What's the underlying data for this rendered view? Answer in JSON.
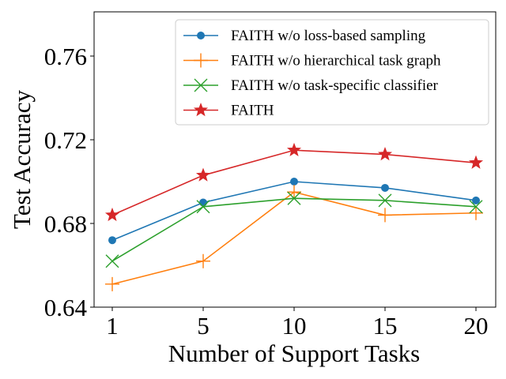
{
  "chart_data": {
    "type": "line",
    "title": "",
    "xlabel": "Number of Support Tasks",
    "ylabel": "Test Accuracy",
    "categories": [
      "1",
      "5",
      "10",
      "15",
      "20"
    ],
    "yticks": [
      "0.64",
      "0.68",
      "0.72",
      "0.76"
    ],
    "ylim": [
      0.64,
      0.78
    ],
    "grid": false,
    "legend_position": "top-right",
    "series": [
      {
        "name": "FAITH w/o loss-based sampling",
        "color": "#1f77b4",
        "marker": "circle",
        "values": [
          0.672,
          0.69,
          0.7,
          0.697,
          0.691
        ]
      },
      {
        "name": "FAITH w/o hierarchical task graph",
        "color": "#ff7f0e",
        "marker": "plus",
        "values": [
          0.651,
          0.662,
          0.695,
          0.684,
          0.685
        ]
      },
      {
        "name": "FAITH w/o task-specific classifier",
        "color": "#2ca02c",
        "marker": "x",
        "values": [
          0.662,
          0.688,
          0.692,
          0.691,
          0.688
        ]
      },
      {
        "name": "FAITH",
        "color": "#d62728",
        "marker": "star",
        "values": [
          0.684,
          0.703,
          0.715,
          0.713,
          0.709
        ]
      }
    ]
  }
}
